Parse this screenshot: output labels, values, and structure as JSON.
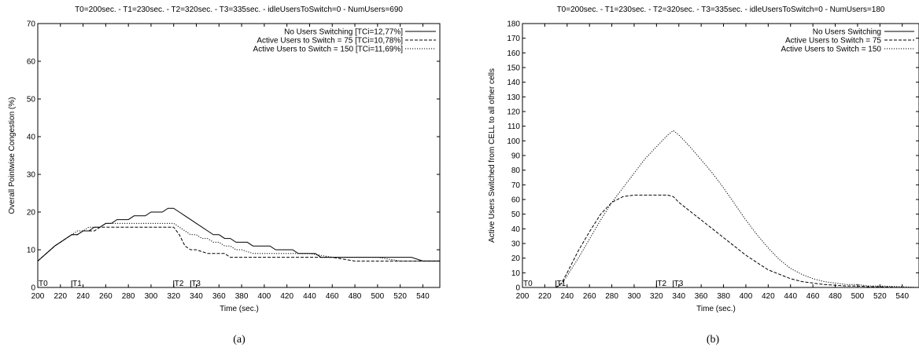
{
  "chart_data": [
    {
      "type": "line",
      "panel_label": "(a)",
      "title": "T0=200sec. - T1=230sec. - T2=320sec. - T3=335sec. - idleUsersToSwitch=0 - NumUsers=690",
      "xlabel": "Time (sec.)",
      "ylabel": "Overall Pointwise Congestion (%)",
      "xlim": [
        200,
        555
      ],
      "ylim": [
        0,
        70
      ],
      "xticks": [
        200,
        220,
        240,
        260,
        280,
        300,
        320,
        340,
        360,
        380,
        400,
        420,
        440,
        460,
        480,
        500,
        520,
        540
      ],
      "yticks": [
        0,
        10,
        20,
        30,
        40,
        50,
        60,
        70
      ],
      "markers": [
        {
          "label": "T0",
          "x": 200
        },
        {
          "label": "T1",
          "x": 230
        },
        {
          "label": "T2",
          "x": 320
        },
        {
          "label": "T3",
          "x": 335
        }
      ],
      "legend_position": "top-right",
      "series": [
        {
          "name": "No Users Switching [TCi=12,77%]",
          "style": "solid",
          "x": [
            200,
            215,
            220,
            225,
            230,
            235,
            240,
            245,
            250,
            255,
            260,
            265,
            270,
            275,
            280,
            285,
            290,
            295,
            300,
            305,
            310,
            315,
            320,
            325,
            330,
            335,
            340,
            345,
            350,
            355,
            360,
            365,
            370,
            375,
            380,
            385,
            390,
            395,
            400,
            405,
            410,
            415,
            420,
            425,
            430,
            435,
            440,
            445,
            450,
            455,
            460,
            470,
            480,
            490,
            500,
            510,
            520,
            530,
            540,
            545,
            555
          ],
          "y": [
            7,
            11,
            12,
            13,
            14,
            14,
            15,
            15,
            16,
            16,
            17,
            17,
            18,
            18,
            18,
            19,
            19,
            19,
            20,
            20,
            20,
            21,
            21,
            20,
            19,
            18,
            17,
            16,
            15,
            14,
            14,
            13,
            13,
            12,
            12,
            12,
            11,
            11,
            11,
            11,
            10,
            10,
            10,
            10,
            9,
            9,
            9,
            9,
            8,
            8,
            8,
            8,
            8,
            8,
            8,
            8,
            8,
            8,
            7,
            7,
            7
          ]
        },
        {
          "name": "Active Users to Switch = 75 [TCi=10,78%]",
          "style": "dashed",
          "x": [
            200,
            215,
            220,
            225,
            230,
            235,
            240,
            245,
            250,
            255,
            260,
            270,
            280,
            290,
            300,
            310,
            320,
            325,
            330,
            335,
            340,
            350,
            355,
            360,
            365,
            370,
            380,
            400,
            420,
            440,
            460,
            480,
            500,
            520,
            540,
            555
          ],
          "y": [
            7,
            11,
            12,
            13,
            14,
            14,
            15,
            15,
            15,
            16,
            16,
            16,
            16,
            16,
            16,
            16,
            16,
            14,
            11,
            10,
            10,
            9,
            9,
            9,
            9,
            8,
            8,
            8,
            8,
            8,
            8,
            7,
            7,
            7,
            7,
            7
          ]
        },
        {
          "name": "Active Users to Switch = 150 [TCi=11,69%]",
          "style": "dotted",
          "x": [
            200,
            215,
            220,
            225,
            230,
            235,
            240,
            245,
            250,
            255,
            260,
            270,
            280,
            290,
            300,
            310,
            320,
            325,
            330,
            335,
            340,
            345,
            350,
            355,
            360,
            365,
            370,
            375,
            380,
            390,
            400,
            420,
            440,
            460,
            480,
            500,
            520,
            540,
            555
          ],
          "y": [
            7,
            11,
            12,
            13,
            14,
            15,
            15,
            16,
            16,
            16,
            17,
            17,
            17,
            17,
            17,
            17,
            17,
            16,
            15,
            14,
            14,
            13,
            13,
            12,
            12,
            11,
            11,
            10,
            10,
            9,
            9,
            9,
            9,
            8,
            8,
            8,
            7,
            7,
            7
          ]
        }
      ]
    },
    {
      "type": "line",
      "panel_label": "(b)",
      "title": "T0=200sec. - T1=230sec. - T2=320sec. - T3=335sec. - idleUsersToSwitch=0 - NumUsers=180",
      "xlabel": "Time (sec.)",
      "ylabel": "Active Users Switched from CELL to all other cells",
      "xlim": [
        200,
        555
      ],
      "ylim": [
        0,
        180
      ],
      "xticks": [
        200,
        220,
        240,
        260,
        280,
        300,
        320,
        340,
        360,
        380,
        400,
        420,
        440,
        460,
        480,
        500,
        520,
        540
      ],
      "yticks": [
        0,
        10,
        20,
        30,
        40,
        50,
        60,
        70,
        80,
        90,
        100,
        110,
        120,
        130,
        140,
        150,
        160,
        170,
        180
      ],
      "markers": [
        {
          "label": "T0",
          "x": 200
        },
        {
          "label": "T1",
          "x": 230
        },
        {
          "label": "T2",
          "x": 320
        },
        {
          "label": "T3",
          "x": 335
        }
      ],
      "legend_position": "top-right",
      "series": [
        {
          "name": "No Users Switching",
          "style": "solid",
          "x": [
            200,
            555
          ],
          "y": [
            0,
            0
          ]
        },
        {
          "name": "Active Users to Switch = 75",
          "style": "dashed",
          "x": [
            200,
            230,
            235,
            240,
            250,
            260,
            270,
            280,
            290,
            300,
            310,
            320,
            330,
            335,
            340,
            350,
            360,
            370,
            380,
            390,
            400,
            410,
            420,
            430,
            440,
            450,
            460,
            470,
            480,
            490,
            500,
            510,
            520,
            540,
            555
          ],
          "y": [
            0,
            0,
            3,
            10,
            25,
            38,
            50,
            58,
            62,
            63,
            63,
            63,
            63,
            62,
            58,
            52,
            46,
            40,
            34,
            28,
            22,
            17,
            12,
            9,
            6,
            4,
            3,
            2,
            1.5,
            1,
            1,
            0.5,
            0.5,
            0,
            0
          ]
        },
        {
          "name": "Active Users to Switch = 150",
          "style": "dotted",
          "x": [
            200,
            230,
            235,
            240,
            250,
            260,
            270,
            280,
            290,
            300,
            310,
            320,
            330,
            335,
            340,
            350,
            360,
            370,
            380,
            390,
            400,
            410,
            420,
            430,
            440,
            450,
            460,
            470,
            480,
            490,
            500,
            510,
            520,
            540,
            555
          ],
          "y": [
            0,
            0,
            2,
            8,
            20,
            33,
            46,
            58,
            68,
            78,
            88,
            96,
            104,
            107,
            104,
            96,
            87,
            78,
            68,
            57,
            46,
            36,
            27,
            19,
            13,
            9,
            6,
            4,
            3,
            2,
            2,
            1,
            1,
            0.5,
            0
          ]
        }
      ]
    }
  ]
}
